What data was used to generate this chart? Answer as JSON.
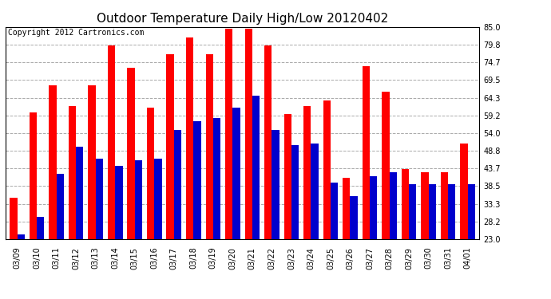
{
  "title": "Outdoor Temperature Daily High/Low 20120402",
  "copyright": "Copyright 2012 Cartronics.com",
  "dates": [
    "03/09",
    "03/10",
    "03/11",
    "03/12",
    "03/13",
    "03/14",
    "03/15",
    "03/16",
    "03/17",
    "03/18",
    "03/19",
    "03/20",
    "03/21",
    "03/22",
    "03/23",
    "03/24",
    "03/25",
    "03/26",
    "03/27",
    "03/28",
    "03/29",
    "03/30",
    "03/31",
    "04/01"
  ],
  "highs": [
    35.0,
    60.0,
    68.0,
    62.0,
    68.0,
    79.5,
    73.0,
    61.5,
    77.0,
    82.0,
    77.0,
    84.5,
    84.5,
    79.5,
    59.5,
    62.0,
    63.5,
    41.0,
    73.5,
    66.0,
    43.5,
    42.5,
    42.5,
    51.0
  ],
  "lows": [
    24.5,
    29.5,
    42.0,
    50.0,
    46.5,
    44.5,
    46.0,
    46.5,
    55.0,
    57.5,
    58.5,
    61.5,
    65.0,
    55.0,
    50.5,
    51.0,
    39.5,
    35.5,
    41.5,
    42.5,
    39.0,
    39.0,
    39.0,
    39.0
  ],
  "high_color": "#ff0000",
  "low_color": "#0000cc",
  "background_color": "#ffffff",
  "plot_bg_color": "#ffffff",
  "grid_color": "#aaaaaa",
  "ylim": [
    23.0,
    85.0
  ],
  "yticks": [
    23.0,
    28.2,
    33.3,
    38.5,
    43.7,
    48.8,
    54.0,
    59.2,
    64.3,
    69.5,
    74.7,
    79.8,
    85.0
  ],
  "bar_width": 0.38,
  "title_fontsize": 11,
  "tick_fontsize": 7,
  "copyright_fontsize": 7
}
